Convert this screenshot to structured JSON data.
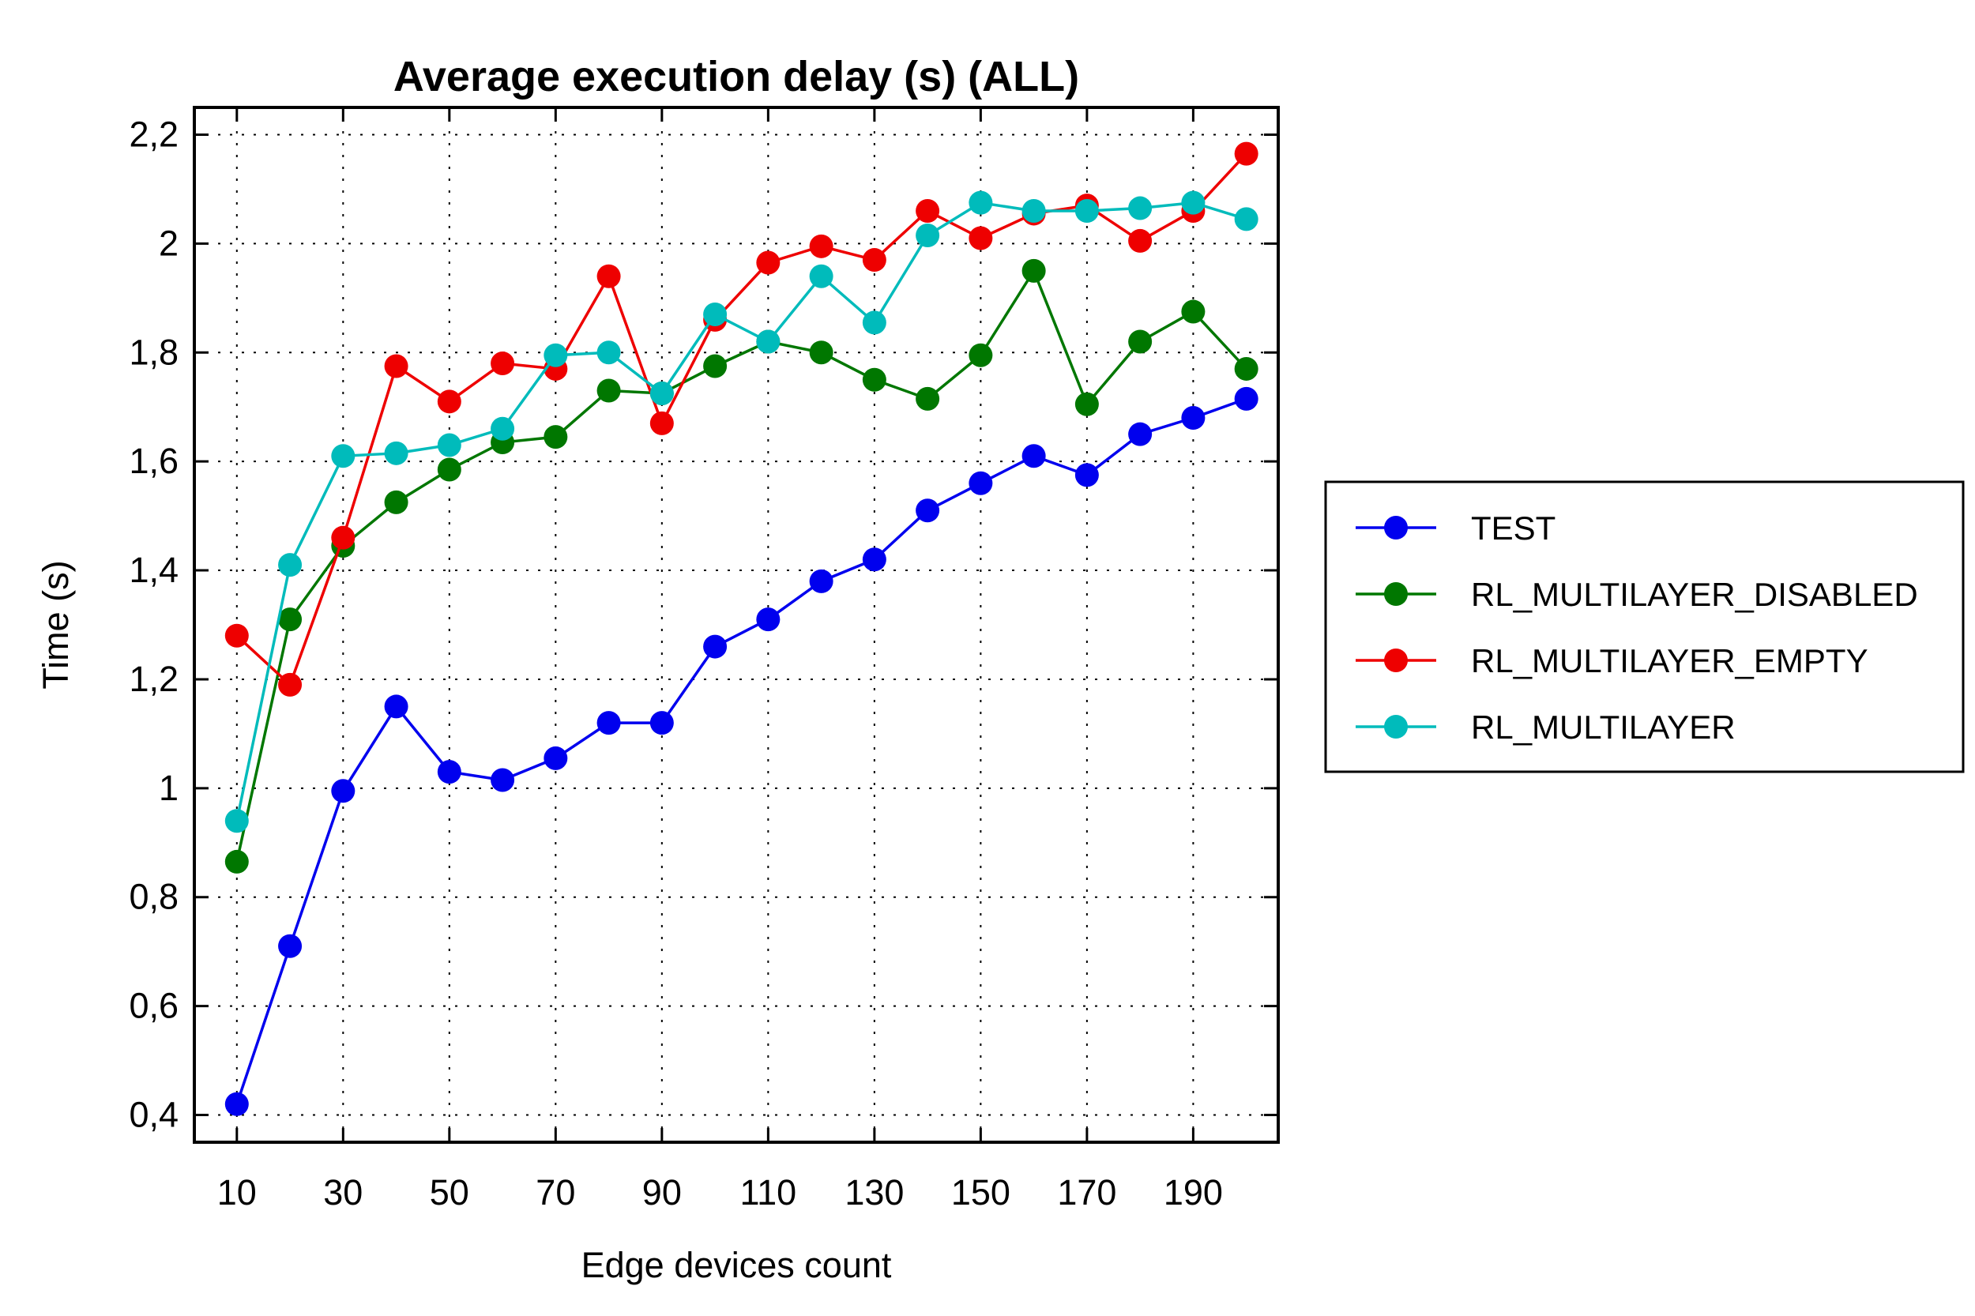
{
  "chart_data": {
    "type": "line",
    "title": "Average execution delay (s) (ALL)",
    "xlabel": "Edge devices count",
    "ylabel": "Time (s)",
    "xlim": [
      2,
      206
    ],
    "ylim": [
      0.35,
      2.25
    ],
    "x": [
      10,
      20,
      30,
      40,
      50,
      60,
      70,
      80,
      90,
      100,
      110,
      120,
      130,
      140,
      150,
      160,
      170,
      180,
      190,
      200
    ],
    "x_ticks": [
      10,
      30,
      50,
      70,
      90,
      110,
      130,
      150,
      170,
      190
    ],
    "x_tick_labels": [
      "10",
      "30",
      "50",
      "70",
      "90",
      "110",
      "130",
      "150",
      "170",
      "190"
    ],
    "y_ticks": [
      0.4,
      0.6,
      0.8,
      1.0,
      1.2,
      1.4,
      1.6,
      1.8,
      2.0,
      2.2
    ],
    "y_tick_labels": [
      "0,4",
      "0,6",
      "0,8",
      "1",
      "1,2",
      "1,4",
      "1,6",
      "1,8",
      "2",
      "2,2"
    ],
    "grid": true,
    "legend_position": "right",
    "series": [
      {
        "name": "TEST",
        "color": "#0000ee",
        "values": [
          0.42,
          0.71,
          0.995,
          1.15,
          1.03,
          1.015,
          1.055,
          1.12,
          1.12,
          1.26,
          1.31,
          1.38,
          1.42,
          1.51,
          1.56,
          1.61,
          1.575,
          1.65,
          1.68,
          1.715
        ]
      },
      {
        "name": "RL_MULTILAYER_DISABLED",
        "color": "#007700",
        "values": [
          0.865,
          1.31,
          1.445,
          1.525,
          1.585,
          1.635,
          1.645,
          1.73,
          1.725,
          1.775,
          1.82,
          1.8,
          1.75,
          1.715,
          1.795,
          1.95,
          1.705,
          1.82,
          1.875,
          1.77
        ]
      },
      {
        "name": "RL_MULTILAYER_EMPTY",
        "color": "#ee0000",
        "values": [
          1.28,
          1.19,
          1.46,
          1.775,
          1.71,
          1.78,
          1.77,
          1.94,
          1.67,
          1.86,
          1.965,
          1.995,
          1.97,
          2.06,
          2.01,
          2.055,
          2.07,
          2.005,
          2.06,
          2.165
        ]
      },
      {
        "name": "RL_MULTILAYER",
        "color": "#00bbbb",
        "values": [
          0.94,
          1.41,
          1.61,
          1.615,
          1.63,
          1.66,
          1.795,
          1.8,
          1.725,
          1.87,
          1.82,
          1.94,
          1.855,
          2.015,
          2.075,
          2.06,
          2.06,
          2.065,
          2.075,
          2.045
        ]
      }
    ]
  }
}
